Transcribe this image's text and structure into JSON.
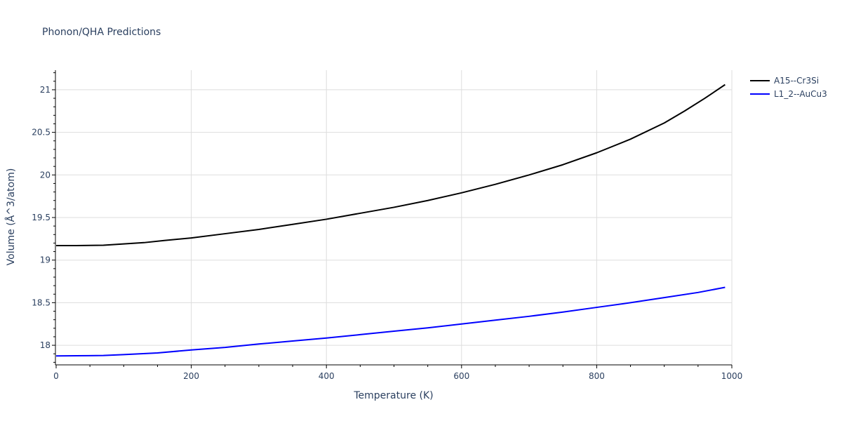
{
  "chart_data": {
    "type": "line",
    "title": "Phonon/QHA Predictions",
    "xlabel": "Temperature (K)",
    "ylabel": "Volume (Å^3/atom)",
    "xlim": [
      0,
      1000
    ],
    "ylim": [
      17.77,
      21.23
    ],
    "x_ticks": [
      0,
      200,
      400,
      600,
      800,
      1000
    ],
    "y_ticks": [
      18,
      18.5,
      19,
      19.5,
      20,
      20.5,
      21
    ],
    "y_tick_labels": [
      "18",
      "18.5",
      "19",
      "19.5",
      "20",
      "20.5",
      "21"
    ],
    "grid": true,
    "legend_position": "top-right",
    "series": [
      {
        "name": "A15--Cr3Si",
        "color": "#000000",
        "x": [
          0,
          30,
          70,
          100,
          130,
          160,
          200,
          250,
          300,
          350,
          400,
          450,
          500,
          550,
          600,
          650,
          700,
          750,
          800,
          850,
          900,
          930,
          960,
          990
        ],
        "y": [
          19.17,
          19.17,
          19.175,
          19.19,
          19.205,
          19.23,
          19.26,
          19.31,
          19.36,
          19.42,
          19.48,
          19.55,
          19.62,
          19.7,
          19.79,
          19.89,
          20.0,
          20.12,
          20.26,
          20.42,
          20.61,
          20.75,
          20.9,
          21.06
        ]
      },
      {
        "name": "L1_2--AuCu3",
        "color": "#0000ff",
        "x": [
          0,
          30,
          70,
          100,
          150,
          200,
          250,
          300,
          350,
          400,
          450,
          500,
          550,
          600,
          650,
          700,
          750,
          800,
          850,
          900,
          950,
          990
        ],
        "y": [
          17.875,
          17.877,
          17.88,
          17.89,
          17.91,
          17.945,
          17.975,
          18.015,
          18.05,
          18.085,
          18.125,
          18.165,
          18.205,
          18.25,
          18.295,
          18.34,
          18.39,
          18.445,
          18.5,
          18.56,
          18.62,
          18.68
        ]
      }
    ]
  }
}
